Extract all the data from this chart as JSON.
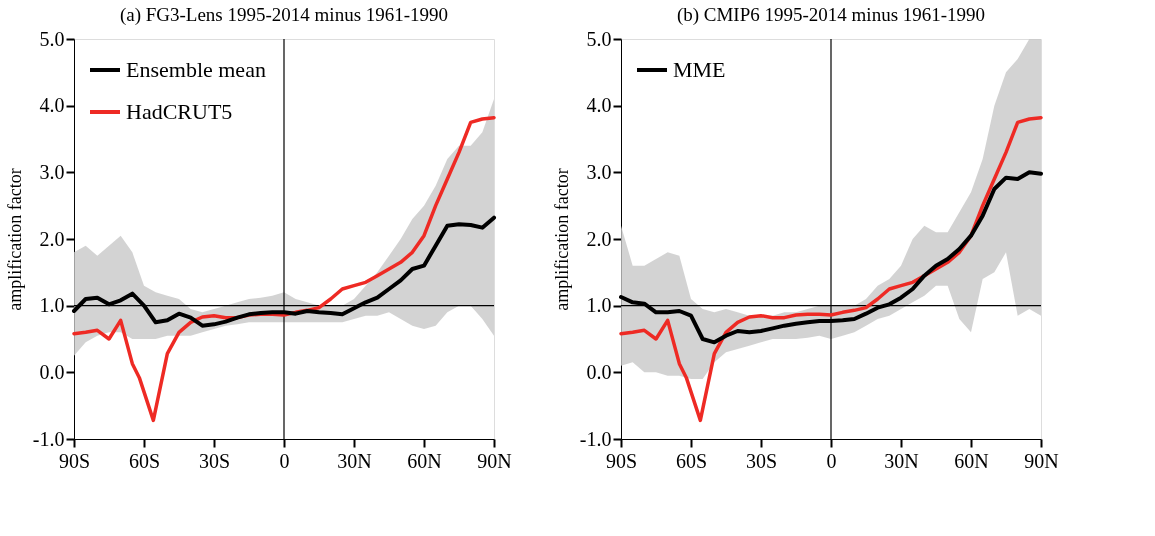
{
  "chart_data": [
    {
      "type": "line",
      "title": "(a) FG3-Lens 1995-2014 minus 1961-1990",
      "ylabel": "amplification factor",
      "x": [
        -90,
        -85,
        -80,
        -75,
        -70,
        -65,
        -60,
        -55,
        -50,
        -45,
        -40,
        -35,
        -30,
        -25,
        -20,
        -15,
        -10,
        -5,
        0,
        5,
        10,
        15,
        20,
        25,
        30,
        35,
        40,
        45,
        50,
        55,
        60,
        65,
        70,
        75,
        80,
        85,
        90
      ],
      "series": [
        {
          "name": "Ensemble mean",
          "color": "#000000",
          "values": [
            0.92,
            1.1,
            1.12,
            1.02,
            1.08,
            1.18,
            1.0,
            0.75,
            0.78,
            0.88,
            0.82,
            0.7,
            0.72,
            0.76,
            0.82,
            0.87,
            0.89,
            0.9,
            0.9,
            0.88,
            0.92,
            0.9,
            0.89,
            0.87,
            0.96,
            1.05,
            1.12,
            1.25,
            1.38,
            1.55,
            1.6,
            1.9,
            2.2,
            2.22,
            2.21,
            2.17,
            2.32
          ],
          "lower": [
            0.25,
            0.45,
            0.55,
            0.6,
            0.6,
            0.5,
            0.5,
            0.5,
            0.55,
            0.55,
            0.55,
            0.6,
            0.65,
            0.7,
            0.72,
            0.75,
            0.75,
            0.75,
            0.75,
            0.75,
            0.75,
            0.75,
            0.75,
            0.75,
            0.8,
            0.85,
            0.85,
            0.9,
            0.8,
            0.7,
            0.65,
            0.7,
            0.9,
            1.0,
            1.0,
            0.8,
            0.55
          ],
          "upper": [
            1.8,
            1.9,
            1.75,
            1.9,
            2.05,
            1.8,
            1.3,
            1.2,
            1.15,
            1.1,
            0.95,
            0.9,
            0.95,
            1.0,
            1.05,
            1.1,
            1.12,
            1.15,
            1.2,
            1.1,
            1.05,
            1.0,
            1.0,
            1.0,
            1.1,
            1.3,
            1.5,
            1.75,
            2.0,
            2.3,
            2.5,
            2.8,
            3.2,
            3.4,
            3.4,
            3.6,
            4.1
          ]
        },
        {
          "name": "HadCRUT5",
          "color": "#ee2a24",
          "x": [
            -90,
            -85,
            -80,
            -75,
            -70,
            -65,
            -62,
            -56,
            -50,
            -45,
            -40,
            -35,
            -30,
            -25,
            -20,
            -15,
            -10,
            -5,
            0,
            5,
            10,
            15,
            20,
            25,
            30,
            35,
            40,
            45,
            50,
            55,
            60,
            65,
            70,
            75,
            80,
            85,
            90
          ],
          "values": [
            0.58,
            0.6,
            0.63,
            0.5,
            0.78,
            0.13,
            -0.08,
            -0.72,
            0.28,
            0.6,
            0.75,
            0.83,
            0.85,
            0.82,
            0.82,
            0.86,
            0.87,
            0.87,
            0.86,
            0.9,
            0.93,
            0.97,
            1.1,
            1.25,
            1.3,
            1.35,
            1.45,
            1.55,
            1.65,
            1.8,
            2.05,
            2.5,
            2.9,
            3.3,
            3.75,
            3.8,
            3.82
          ]
        }
      ],
      "xlim": [
        -90,
        90
      ],
      "xticks": [
        {
          "value": -90,
          "label": "90S"
        },
        {
          "value": -60,
          "label": "60S"
        },
        {
          "value": -30,
          "label": "30S"
        },
        {
          "value": 0,
          "label": "0"
        },
        {
          "value": 30,
          "label": "30N"
        },
        {
          "value": 60,
          "label": "60N"
        },
        {
          "value": 90,
          "label": "90N"
        }
      ],
      "ylim": [
        -1,
        5
      ],
      "yticks": [
        {
          "value": -1,
          "label": "-1.0"
        },
        {
          "value": 0,
          "label": "0.0"
        },
        {
          "value": 1,
          "label": "1.0"
        },
        {
          "value": 2,
          "label": "2.0"
        },
        {
          "value": 3,
          "label": "3.0"
        },
        {
          "value": 4,
          "label": "4.0"
        },
        {
          "value": 5,
          "label": "5.0"
        }
      ],
      "ref_lines": [
        {
          "axis": "x",
          "value": 0,
          "color": "#000000"
        },
        {
          "axis": "y",
          "value": 1,
          "color": "#000000"
        }
      ],
      "grid": false,
      "legend": "top left",
      "marker": "none",
      "line_style": "solid"
    },
    {
      "type": "line",
      "title": "(b) CMIP6 1995-2014 minus 1961-1990",
      "ylabel": "amplification factor",
      "x": [
        -90,
        -85,
        -80,
        -75,
        -70,
        -65,
        -60,
        -55,
        -50,
        -45,
        -40,
        -35,
        -30,
        -25,
        -20,
        -15,
        -10,
        -5,
        0,
        5,
        10,
        15,
        20,
        25,
        30,
        35,
        40,
        45,
        50,
        55,
        60,
        65,
        70,
        75,
        80,
        85,
        90
      ],
      "series": [
        {
          "name": "MME",
          "color": "#000000",
          "values": [
            1.13,
            1.05,
            1.03,
            0.9,
            0.9,
            0.92,
            0.85,
            0.5,
            0.45,
            0.55,
            0.62,
            0.6,
            0.62,
            0.66,
            0.7,
            0.73,
            0.75,
            0.77,
            0.77,
            0.78,
            0.8,
            0.88,
            0.97,
            1.02,
            1.12,
            1.25,
            1.45,
            1.6,
            1.7,
            1.85,
            2.05,
            2.35,
            2.75,
            2.92,
            2.9,
            3.0,
            2.98
          ],
          "lower": [
            0.1,
            0.15,
            0.0,
            0.0,
            -0.05,
            -0.05,
            -0.1,
            -0.1,
            0.15,
            0.3,
            0.35,
            0.4,
            0.45,
            0.5,
            0.5,
            0.5,
            0.52,
            0.55,
            0.5,
            0.55,
            0.6,
            0.7,
            0.8,
            0.85,
            0.95,
            1.05,
            1.15,
            1.3,
            1.3,
            0.8,
            0.6,
            1.4,
            1.5,
            1.8,
            0.85,
            0.95,
            0.85
          ],
          "upper": [
            2.2,
            1.6,
            1.6,
            1.7,
            1.8,
            1.75,
            1.1,
            0.95,
            0.9,
            0.95,
            0.9,
            0.85,
            0.85,
            0.85,
            0.9,
            0.9,
            0.95,
            1.0,
            1.0,
            1.0,
            1.0,
            1.1,
            1.3,
            1.4,
            1.6,
            2.0,
            2.2,
            2.1,
            2.1,
            2.4,
            2.7,
            3.2,
            4.0,
            4.5,
            4.7,
            5.0,
            5.0
          ]
        },
        {
          "color": "#ee2a24",
          "x": [
            -90,
            -85,
            -80,
            -75,
            -70,
            -65,
            -62,
            -56,
            -50,
            -45,
            -40,
            -35,
            -30,
            -25,
            -20,
            -15,
            -10,
            -5,
            0,
            5,
            10,
            15,
            20,
            25,
            30,
            35,
            40,
            45,
            50,
            55,
            60,
            65,
            70,
            75,
            80,
            85,
            90
          ],
          "values": [
            0.58,
            0.6,
            0.63,
            0.5,
            0.78,
            0.13,
            -0.08,
            -0.72,
            0.28,
            0.6,
            0.75,
            0.83,
            0.85,
            0.82,
            0.82,
            0.86,
            0.87,
            0.87,
            0.86,
            0.9,
            0.93,
            0.97,
            1.1,
            1.25,
            1.3,
            1.35,
            1.45,
            1.55,
            1.65,
            1.8,
            2.05,
            2.5,
            2.9,
            3.3,
            3.75,
            3.8,
            3.82
          ]
        }
      ],
      "xlim": [
        -90,
        90
      ],
      "xticks": [
        {
          "value": -90,
          "label": "90S"
        },
        {
          "value": -60,
          "label": "60S"
        },
        {
          "value": -30,
          "label": "30S"
        },
        {
          "value": 0,
          "label": "0"
        },
        {
          "value": 30,
          "label": "30N"
        },
        {
          "value": 60,
          "label": "60N"
        },
        {
          "value": 90,
          "label": "90N"
        }
      ],
      "ylim": [
        -1,
        5
      ],
      "yticks": [
        {
          "value": -1,
          "label": "-1.0"
        },
        {
          "value": 0,
          "label": "0.0"
        },
        {
          "value": 1,
          "label": "1.0"
        },
        {
          "value": 2,
          "label": "2.0"
        },
        {
          "value": 3,
          "label": "3.0"
        },
        {
          "value": 4,
          "label": "4.0"
        },
        {
          "value": 5,
          "label": "5.0"
        }
      ],
      "ref_lines": [
        {
          "axis": "x",
          "value": 0,
          "color": "#000000"
        },
        {
          "axis": "y",
          "value": 1,
          "color": "#000000"
        }
      ],
      "grid": false,
      "legend": "top left",
      "marker": "none",
      "line_style": "solid"
    }
  ]
}
